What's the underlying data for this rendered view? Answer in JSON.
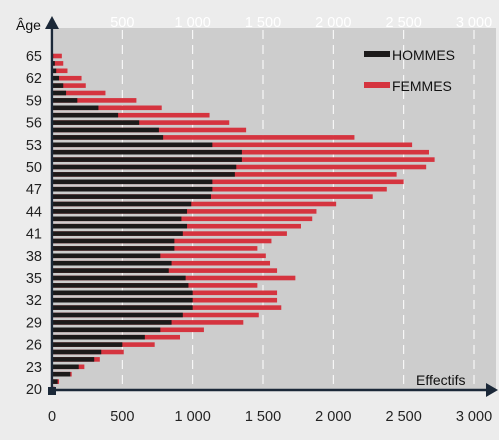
{
  "chart_data": {
    "type": "bar",
    "orientation": "horizontal",
    "ylabel": "Âge",
    "xlabel": "Effectifs",
    "xlim": [
      0,
      3000
    ],
    "ylim": [
      20,
      66
    ],
    "x_ticks": [
      "0",
      "500",
      "1 000",
      "1 500",
      "2 000",
      "2 500",
      "3 000"
    ],
    "y_ticks": [
      "20",
      "23",
      "26",
      "29",
      "32",
      "35",
      "38",
      "41",
      "44",
      "47",
      "50",
      "53",
      "56",
      "59",
      "62",
      "65"
    ],
    "legend_position": "top-right",
    "grid": "vertical dashed",
    "ages": [
      20,
      21,
      22,
      23,
      24,
      25,
      26,
      27,
      28,
      29,
      30,
      31,
      32,
      33,
      34,
      35,
      36,
      37,
      38,
      39,
      40,
      41,
      42,
      43,
      44,
      45,
      46,
      47,
      48,
      49,
      50,
      51,
      52,
      53,
      54,
      55,
      56,
      57,
      58,
      59,
      60,
      61,
      62,
      63,
      64,
      65
    ],
    "series": [
      {
        "name": "HOMMES",
        "color": "#1c1a1a",
        "values": [
          10,
          40,
          130,
          190,
          300,
          350,
          500,
          660,
          770,
          850,
          930,
          1000,
          1000,
          1000,
          970,
          950,
          830,
          850,
          770,
          870,
          870,
          930,
          960,
          920,
          960,
          990,
          1130,
          1140,
          1140,
          1300,
          1310,
          1350,
          1350,
          1140,
          790,
          760,
          620,
          470,
          330,
          180,
          100,
          80,
          50,
          30,
          20,
          0
        ]
      },
      {
        "name": "FEMMES",
        "color": "#d5343f",
        "values": [
          20,
          50,
          140,
          230,
          340,
          510,
          730,
          910,
          1080,
          1360,
          1470,
          1630,
          1600,
          1600,
          1460,
          1730,
          1600,
          1550,
          1520,
          1460,
          1560,
          1670,
          1770,
          1850,
          1880,
          2020,
          2280,
          2380,
          2500,
          2450,
          2660,
          2720,
          2680,
          2560,
          2150,
          1380,
          1260,
          1120,
          780,
          600,
          380,
          240,
          210,
          110,
          80,
          70
        ]
      }
    ]
  }
}
